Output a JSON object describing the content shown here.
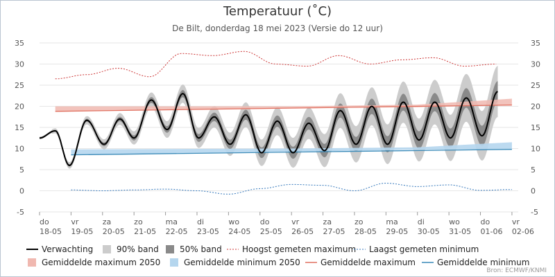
{
  "title": "Temperatuur (˚C)",
  "subtitle": "De Bilt, donderdag 18 mei 2023 (Versie do 12 uur)",
  "source": "Bron: ECMWF/KNMI",
  "colors": {
    "forecast": "#000000",
    "band90": "#cccccc",
    "band50": "#8a8a8a",
    "record_max": "#cc3333",
    "record_min": "#3377bb",
    "avg_max_2050": "#f0b8b0",
    "avg_min_2050": "#b5d6ee",
    "avg_max": "#e07060",
    "avg_min": "#3a8ab8"
  },
  "chart_data": {
    "type": "line",
    "title": "Temperatuur (˚C)",
    "ylim": [
      -5,
      35
    ],
    "yticks": [
      -5,
      0,
      5,
      10,
      15,
      20,
      25,
      30,
      35
    ],
    "y_axis_both_sides": true,
    "xlim": [
      0,
      15.2
    ],
    "grid": true,
    "legend_position": "bottom",
    "x_ticks": [
      {
        "day": "do",
        "date": "18-05"
      },
      {
        "day": "vr",
        "date": "19-05"
      },
      {
        "day": "za",
        "date": "20-05"
      },
      {
        "day": "zo",
        "date": "21-05"
      },
      {
        "day": "ma",
        "date": "22-05"
      },
      {
        "day": "di",
        "date": "23-05"
      },
      {
        "day": "wo",
        "date": "24-05"
      },
      {
        "day": "do",
        "date": "25-05"
      },
      {
        "day": "vr",
        "date": "26-05"
      },
      {
        "day": "za",
        "date": "27-05"
      },
      {
        "day": "zo",
        "date": "28-05"
      },
      {
        "day": "ma",
        "date": "29-05"
      },
      {
        "day": "di",
        "date": "30-05"
      },
      {
        "day": "wo",
        "date": "31-05"
      },
      {
        "day": "do",
        "date": "01-06"
      },
      {
        "day": "vr",
        "date": "02-06"
      }
    ],
    "forecast_extrema": [
      {
        "x": 0.0,
        "y": 12.5
      },
      {
        "x": 0.5,
        "y": 14.2
      },
      {
        "x": 0.95,
        "y": 6.0
      },
      {
        "x": 1.5,
        "y": 16.7
      },
      {
        "x": 2.05,
        "y": 11.0
      },
      {
        "x": 2.55,
        "y": 17.0
      },
      {
        "x": 3.0,
        "y": 12.5
      },
      {
        "x": 3.55,
        "y": 21.5
      },
      {
        "x": 4.05,
        "y": 14.5
      },
      {
        "x": 4.55,
        "y": 23.0
      },
      {
        "x": 5.05,
        "y": 12.5
      },
      {
        "x": 5.55,
        "y": 17.5
      },
      {
        "x": 6.05,
        "y": 11.0
      },
      {
        "x": 6.55,
        "y": 18.0
      },
      {
        "x": 7.05,
        "y": 9.0
      },
      {
        "x": 7.55,
        "y": 16.5
      },
      {
        "x": 8.05,
        "y": 9.0
      },
      {
        "x": 8.55,
        "y": 16.0
      },
      {
        "x": 9.05,
        "y": 9.5
      },
      {
        "x": 9.55,
        "y": 19.0
      },
      {
        "x": 10.05,
        "y": 11.0
      },
      {
        "x": 10.55,
        "y": 20.0
      },
      {
        "x": 11.05,
        "y": 11.0
      },
      {
        "x": 11.55,
        "y": 21.0
      },
      {
        "x": 12.05,
        "y": 12.0
      },
      {
        "x": 12.55,
        "y": 21.0
      },
      {
        "x": 13.05,
        "y": 12.5
      },
      {
        "x": 13.55,
        "y": 22.0
      },
      {
        "x": 14.05,
        "y": 13.0
      },
      {
        "x": 14.55,
        "y": 23.5
      }
    ],
    "band90_spread_start": 1.0,
    "band90_spread_end": 11.0,
    "band50_spread_start": 0.4,
    "band50_spread_end": 5.5,
    "record_max": [
      {
        "x": 0.5,
        "y": 26.5
      },
      {
        "x": 1.5,
        "y": 27.5
      },
      {
        "x": 2.5,
        "y": 29.0
      },
      {
        "x": 3.5,
        "y": 27.0
      },
      {
        "x": 4.5,
        "y": 32.5
      },
      {
        "x": 5.5,
        "y": 32.0
      },
      {
        "x": 6.5,
        "y": 33.0
      },
      {
        "x": 7.5,
        "y": 30.0
      },
      {
        "x": 8.5,
        "y": 29.5
      },
      {
        "x": 9.5,
        "y": 32.0
      },
      {
        "x": 10.5,
        "y": 30.0
      },
      {
        "x": 11.5,
        "y": 31.0
      },
      {
        "x": 12.5,
        "y": 31.5
      },
      {
        "x": 13.5,
        "y": 29.5
      },
      {
        "x": 14.5,
        "y": 30.0
      }
    ],
    "record_min": [
      {
        "x": 1.0,
        "y": 0.2
      },
      {
        "x": 2.0,
        "y": 0.0
      },
      {
        "x": 3.0,
        "y": 0.2
      },
      {
        "x": 4.0,
        "y": 0.4
      },
      {
        "x": 5.0,
        "y": 0.0
      },
      {
        "x": 6.0,
        "y": -0.8
      },
      {
        "x": 7.0,
        "y": 0.5
      },
      {
        "x": 8.0,
        "y": 1.5
      },
      {
        "x": 9.0,
        "y": 1.3
      },
      {
        "x": 10.0,
        "y": 0.0
      },
      {
        "x": 11.0,
        "y": 1.8
      },
      {
        "x": 12.0,
        "y": 1.0
      },
      {
        "x": 13.0,
        "y": 1.4
      },
      {
        "x": 14.0,
        "y": 0.1
      },
      {
        "x": 15.0,
        "y": 0.3
      }
    ],
    "avg_max": [
      {
        "x": 0.5,
        "y": 18.8
      },
      {
        "x": 15.0,
        "y": 20.3
      }
    ],
    "avg_min": [
      {
        "x": 1.0,
        "y": 8.5
      },
      {
        "x": 15.0,
        "y": 9.8
      }
    ],
    "avg_max_2050_band": [
      {
        "x": 0.5,
        "lo": 18.8,
        "hi": 20.0
      },
      {
        "x": 8.0,
        "lo": 19.6,
        "hi": 20.0
      },
      {
        "x": 12.0,
        "lo": 19.8,
        "hi": 20.4
      },
      {
        "x": 15.0,
        "lo": 20.3,
        "hi": 21.8
      }
    ],
    "avg_min_2050_band": [
      {
        "x": 1.0,
        "lo": 8.5,
        "hi": 9.8
      },
      {
        "x": 8.0,
        "lo": 9.3,
        "hi": 10.0
      },
      {
        "x": 12.0,
        "lo": 9.7,
        "hi": 10.3
      },
      {
        "x": 15.0,
        "lo": 9.9,
        "hi": 11.5
      }
    ],
    "legend": [
      {
        "key": "forecast",
        "label": "Verwachting",
        "style": "line"
      },
      {
        "key": "band90",
        "label": "90% band",
        "style": "box"
      },
      {
        "key": "band50",
        "label": "50% band",
        "style": "box"
      },
      {
        "key": "record_max",
        "label": "Hoogst gemeten maximum",
        "style": "dash"
      },
      {
        "key": "record_min",
        "label": "Laagst gemeten minimum",
        "style": "dash"
      },
      {
        "key": "avg_max_2050",
        "label": "Gemiddelde maximum 2050",
        "style": "box"
      },
      {
        "key": "avg_min_2050",
        "label": "Gemiddelde minimum 2050",
        "style": "box"
      },
      {
        "key": "avg_max",
        "label": "Gemiddelde maximum",
        "style": "line"
      },
      {
        "key": "avg_min",
        "label": "Gemiddelde minimum",
        "style": "line"
      }
    ]
  }
}
